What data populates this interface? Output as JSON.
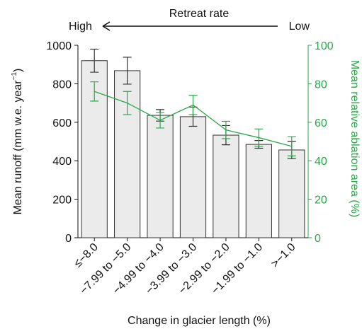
{
  "chart_data": {
    "type": "bar_line",
    "annotation_title": "Retreat rate",
    "annotation_left": "High",
    "annotation_right": "Low",
    "xlabel": "Change in glacier length (%)",
    "ylabel": "Mean runoff (mm w.e. year",
    "ylabel_sup": "−1",
    "ylabel_end": ")",
    "y2label": "Mean relative ablation area (%)",
    "categories": [
      "≤−8.0",
      "−7.99 to −5.0",
      "−4.99 to −4.0",
      "−3.99 to −3.0",
      "−2.99 to −2.0",
      "−1.99 to −1.0",
      ">−1.0"
    ],
    "series": [
      {
        "type": "bar",
        "color": "#ebebeb",
        "values": [
          920,
          868,
          636,
          629,
          533,
          485,
          456
        ],
        "errors": [
          60,
          70,
          30,
          50,
          50,
          20,
          45
        ]
      },
      {
        "type": "line",
        "axis": "y2",
        "color": "#2aa84a",
        "values": [
          76,
          70,
          61,
          69,
          56,
          52,
          47.5
        ],
        "errors": [
          5,
          6,
          4,
          5,
          4.5,
          4.5,
          5
        ]
      }
    ],
    "ylim": [
      0,
      1000
    ],
    "yticks": [
      0,
      200,
      400,
      600,
      800,
      1000
    ],
    "y2lim": [
      0,
      100
    ],
    "y2ticks": [
      0,
      20,
      40,
      60,
      80,
      100
    ]
  }
}
